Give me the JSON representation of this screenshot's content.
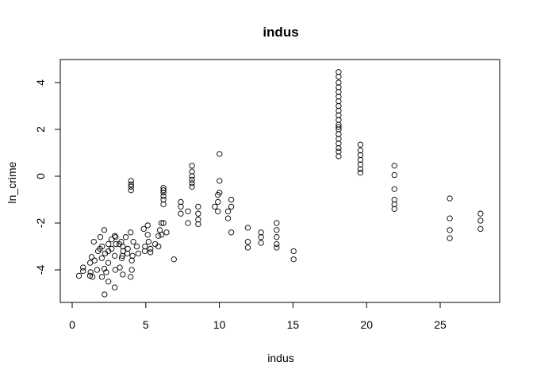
{
  "chart_data": {
    "type": "scatter",
    "title": "indus",
    "xlabel": "indus",
    "ylabel": "ln_crime",
    "xlim": [
      0,
      28
    ],
    "ylim": [
      -5,
      4.5
    ],
    "x_ticks": [
      0,
      5,
      10,
      15,
      20,
      25
    ],
    "y_ticks": [
      -4,
      -2,
      0,
      2,
      4
    ],
    "grid": false,
    "legend": "none",
    "marker": "open-circle",
    "series": [
      {
        "points": [
          [
            0.46,
            -4.25
          ],
          [
            0.74,
            -3.9
          ],
          [
            1.21,
            -4.25
          ],
          [
            1.25,
            -4.1
          ],
          [
            1.38,
            -4.3
          ],
          [
            1.47,
            -2.8
          ],
          [
            1.52,
            -3.6
          ],
          [
            1.69,
            -4.0
          ],
          [
            1.76,
            -3.2
          ],
          [
            1.89,
            -3.1
          ],
          [
            1.91,
            -2.6
          ],
          [
            2.01,
            -3.5
          ],
          [
            2.02,
            -4.3
          ],
          [
            2.03,
            -3.0
          ],
          [
            2.18,
            -3.95
          ],
          [
            2.18,
            -2.3
          ],
          [
            2.24,
            -3.3
          ],
          [
            2.31,
            -4.1
          ],
          [
            2.46,
            -4.5
          ],
          [
            2.46,
            -3.2
          ],
          [
            2.46,
            -2.9
          ],
          [
            2.68,
            -3.1
          ],
          [
            2.68,
            -2.7
          ],
          [
            2.89,
            -3.4
          ],
          [
            2.89,
            -2.55
          ],
          [
            2.95,
            -2.6
          ],
          [
            2.97,
            -2.9
          ],
          [
            3.24,
            -3.9
          ],
          [
            3.33,
            -2.8
          ],
          [
            3.37,
            -3.5
          ],
          [
            3.41,
            -3.4
          ],
          [
            3.44,
            -3.0
          ],
          [
            3.64,
            -2.6
          ],
          [
            3.75,
            -3.3
          ],
          [
            3.78,
            -3.1
          ],
          [
            3.97,
            -2.4
          ],
          [
            4.05,
            -3.6
          ],
          [
            4.15,
            -2.8
          ],
          [
            4.39,
            -3.0
          ],
          [
            4.49,
            -3.3
          ],
          [
            4.93,
            -3.2
          ],
          [
            4.95,
            -3.0
          ],
          [
            5.13,
            -2.5
          ],
          [
            5.19,
            -2.8
          ],
          [
            5.32,
            -3.1
          ],
          [
            5.64,
            -2.9
          ],
          [
            5.86,
            -3.0
          ],
          [
            5.96,
            -2.3
          ],
          [
            6.07,
            -2.5
          ],
          [
            6.2,
            -2.0
          ],
          [
            2.2,
            -5.05
          ],
          [
            2.89,
            -4.75
          ],
          [
            3.44,
            -4.2
          ],
          [
            3.97,
            -4.3
          ],
          [
            4.05,
            -4.0
          ],
          [
            2.45,
            -3.7
          ],
          [
            3.2,
            -2.9
          ],
          [
            1.22,
            -3.7
          ],
          [
            0.74,
            -4.05
          ],
          [
            1.32,
            -3.45
          ],
          [
            2.93,
            -4.0
          ],
          [
            3.46,
            -3.2
          ],
          [
            4.1,
            -3.4
          ],
          [
            4.86,
            -2.25
          ],
          [
            5.13,
            -2.1
          ],
          [
            5.32,
            -3.25
          ],
          [
            5.86,
            -2.55
          ],
          [
            6.06,
            -2.0
          ],
          [
            6.41,
            -2.4
          ],
          [
            6.91,
            -3.55
          ],
          [
            4.0,
            -0.2
          ],
          [
            4.0,
            -0.35
          ],
          [
            4.0,
            -0.45
          ],
          [
            4.0,
            -0.6
          ],
          [
            6.2,
            -0.5
          ],
          [
            6.2,
            -0.6
          ],
          [
            6.2,
            -0.7
          ],
          [
            6.2,
            -0.85
          ],
          [
            6.2,
            -1.0
          ],
          [
            6.2,
            -1.2
          ],
          [
            7.38,
            -1.1
          ],
          [
            7.38,
            -1.3
          ],
          [
            7.38,
            -1.6
          ],
          [
            7.87,
            -1.5
          ],
          [
            7.87,
            -2.0
          ],
          [
            8.14,
            0.45
          ],
          [
            8.14,
            0.2
          ],
          [
            8.14,
            0.0
          ],
          [
            8.14,
            -0.15
          ],
          [
            8.14,
            -0.3
          ],
          [
            8.14,
            -0.45
          ],
          [
            8.56,
            -1.3
          ],
          [
            8.56,
            -1.6
          ],
          [
            8.56,
            -1.85
          ],
          [
            8.56,
            -2.05
          ],
          [
            9.69,
            -1.3
          ],
          [
            9.9,
            -0.8
          ],
          [
            9.9,
            -1.1
          ],
          [
            9.9,
            -1.5
          ],
          [
            10.01,
            0.95
          ],
          [
            10.01,
            -0.2
          ],
          [
            10.01,
            -0.7
          ],
          [
            10.59,
            -1.5
          ],
          [
            10.59,
            -1.8
          ],
          [
            10.81,
            -1.0
          ],
          [
            10.81,
            -1.3
          ],
          [
            10.81,
            -2.4
          ],
          [
            11.93,
            -2.2
          ],
          [
            11.93,
            -2.8
          ],
          [
            11.93,
            -3.05
          ],
          [
            12.83,
            -2.4
          ],
          [
            12.83,
            -2.6
          ],
          [
            12.83,
            -2.85
          ],
          [
            13.89,
            -2.0
          ],
          [
            13.89,
            -2.3
          ],
          [
            13.89,
            -2.6
          ],
          [
            13.89,
            -2.9
          ],
          [
            13.89,
            -3.05
          ],
          [
            15.04,
            -3.2
          ],
          [
            15.04,
            -3.55
          ],
          [
            18.1,
            4.45
          ],
          [
            18.1,
            4.25
          ],
          [
            18.1,
            4.0
          ],
          [
            18.1,
            3.8
          ],
          [
            18.1,
            3.6
          ],
          [
            18.1,
            3.4
          ],
          [
            18.1,
            3.2
          ],
          [
            18.1,
            3.0
          ],
          [
            18.1,
            2.8
          ],
          [
            18.1,
            2.6
          ],
          [
            18.1,
            2.4
          ],
          [
            18.1,
            2.2
          ],
          [
            18.1,
            2.0
          ],
          [
            18.1,
            1.8
          ],
          [
            18.1,
            1.6
          ],
          [
            18.1,
            1.4
          ],
          [
            18.1,
            1.2
          ],
          [
            18.1,
            1.05
          ],
          [
            18.1,
            0.85
          ],
          [
            18.1,
            2.1
          ],
          [
            19.58,
            1.35
          ],
          [
            19.58,
            1.1
          ],
          [
            19.58,
            0.9
          ],
          [
            19.58,
            0.7
          ],
          [
            19.58,
            0.5
          ],
          [
            19.58,
            0.3
          ],
          [
            19.58,
            0.15
          ],
          [
            21.89,
            0.45
          ],
          [
            21.89,
            0.05
          ],
          [
            21.89,
            -0.55
          ],
          [
            21.89,
            -1.0
          ],
          [
            21.89,
            -1.2
          ],
          [
            21.89,
            -1.4
          ],
          [
            25.65,
            -0.95
          ],
          [
            25.65,
            -1.8
          ],
          [
            25.65,
            -2.3
          ],
          [
            25.65,
            -2.65
          ],
          [
            27.74,
            -1.6
          ],
          [
            27.74,
            -1.9
          ],
          [
            27.74,
            -2.25
          ]
        ]
      }
    ]
  }
}
